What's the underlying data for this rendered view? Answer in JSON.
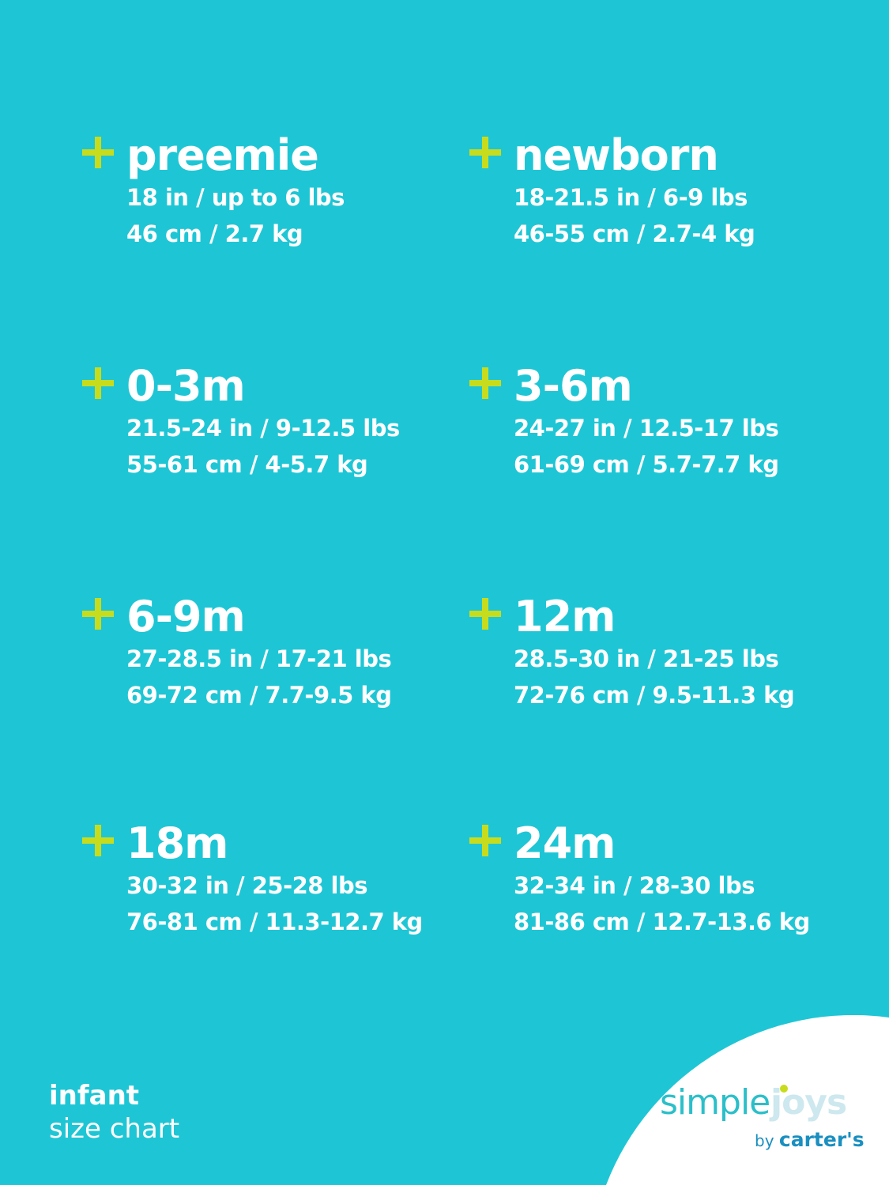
{
  "colors": {
    "background": "#1ec6d5",
    "plus": "#c8dc1e",
    "text": "#ffffff"
  },
  "sizes": [
    {
      "name": "preemie",
      "imperial": "18 in / up to 6 lbs",
      "metric": "46 cm / 2.7 kg"
    },
    {
      "name": "newborn",
      "imperial": "18-21.5 in / 6-9 lbs",
      "metric": "46-55 cm / 2.7-4 kg"
    },
    {
      "name": "0-3m",
      "imperial": "21.5-24 in / 9-12.5 lbs",
      "metric": "55-61 cm / 4-5.7 kg"
    },
    {
      "name": "3-6m",
      "imperial": "24-27 in / 12.5-17 lbs",
      "metric": "61-69 cm / 5.7-7.7 kg"
    },
    {
      "name": "6-9m",
      "imperial": "27-28.5 in / 17-21 lbs",
      "metric": "69-72 cm / 7.7-9.5 kg"
    },
    {
      "name": "12m",
      "imperial": "28.5-30 in / 21-25 lbs",
      "metric": "72-76 cm / 9.5-11.3 kg"
    },
    {
      "name": "18m",
      "imperial": "30-32 in / 25-28 lbs",
      "metric": "76-81 cm / 11.3-12.7 kg"
    },
    {
      "name": "24m",
      "imperial": "32-34 in / 28-30 lbs",
      "metric": "81-86 cm / 12.7-13.6 kg"
    }
  ],
  "footer": {
    "line1": "infant",
    "line2": "size chart"
  },
  "logo": {
    "simple": "simple",
    "joys": "joys",
    "by": "by",
    "brand": "carter's"
  }
}
